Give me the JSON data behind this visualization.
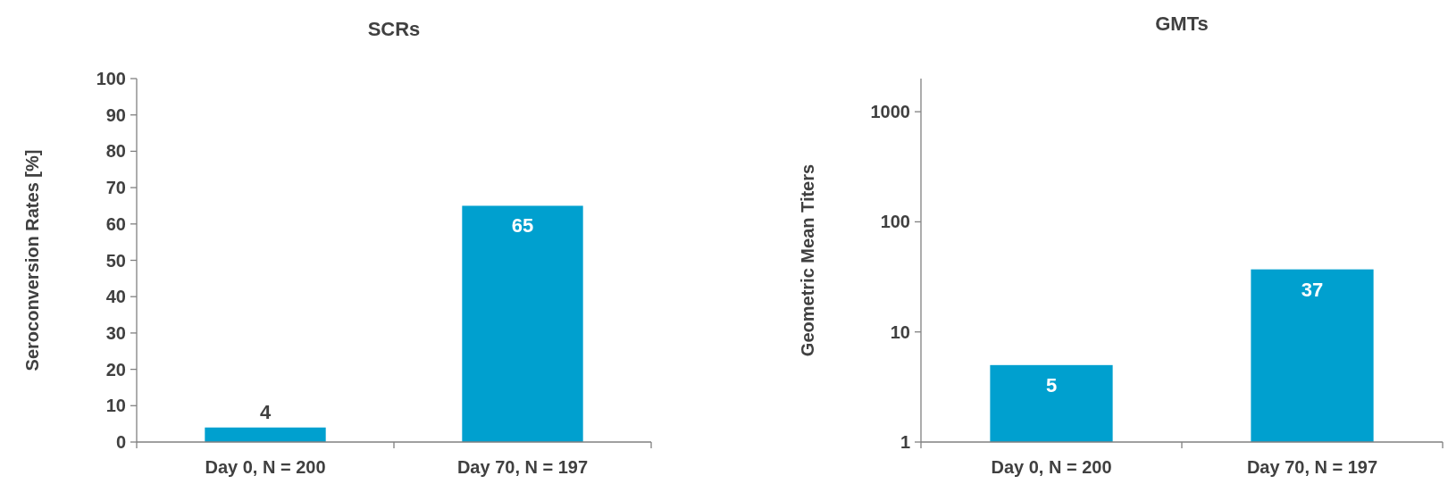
{
  "chart_data": [
    {
      "type": "bar",
      "title": "SCRs",
      "ylabel": "Seroconversion Rates [%]",
      "categories": [
        "Day 0, N = 200",
        "Day 70, N = 197"
      ],
      "values": [
        4,
        65
      ],
      "color": "#00a0cf",
      "ylim": [
        0,
        100
      ],
      "yticks": [
        0,
        10,
        20,
        30,
        40,
        50,
        60,
        70,
        80,
        90,
        100
      ],
      "data_labels": true
    },
    {
      "type": "bar",
      "title": "GMTs",
      "ylabel": "Geometric Mean Titers",
      "categories": [
        "Day 0, N = 200",
        "Day 70, N = 197"
      ],
      "values": [
        5,
        37
      ],
      "color": "#00a0cf",
      "log": true,
      "ylim": [
        1,
        2000
      ],
      "yticks": [
        1,
        10,
        100,
        1000
      ],
      "data_labels": true
    }
  ]
}
